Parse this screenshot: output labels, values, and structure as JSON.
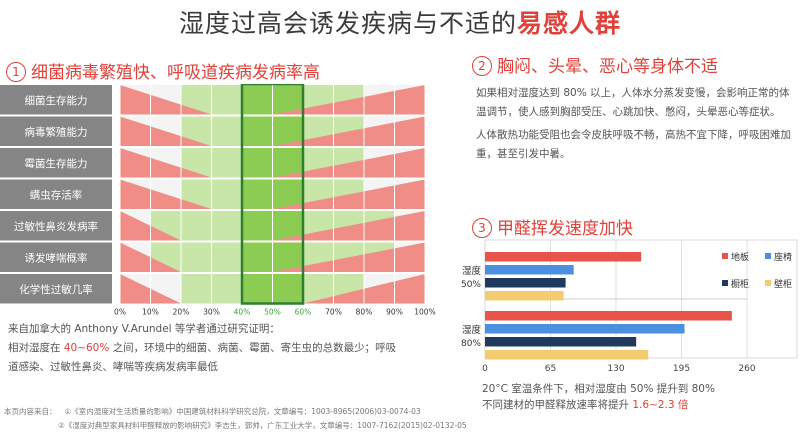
{
  "page": {
    "title_plain": "湿度过高会诱发疾病与不适的",
    "title_highlight": "易感人群"
  },
  "section1": {
    "number": "1",
    "title": "细菌病毒繁殖快、呼吸道疾病发病率高",
    "rows": [
      "细菌生存能力",
      "病毒繁殖能力",
      "霉菌生存能力",
      "螨虫存活率",
      "过敏性鼻炎发病率",
      "诱发哮喘概率",
      "化学性过敏几率"
    ],
    "percent_ticks": [
      "0%",
      "10%",
      "20%",
      "30%",
      "40%",
      "50%",
      "60%",
      "70%",
      "80%",
      "90%",
      "100%"
    ],
    "tick_colors": [
      "#333333",
      "#333333",
      "#333333",
      "#333333",
      "#3aa53a",
      "#3aa53a",
      "#3aa53a",
      "#333333",
      "#333333",
      "#333333",
      "#333333"
    ],
    "optimal_range": "40~60%",
    "colors": {
      "red": "#ef8d86",
      "light_green": "#c8e6a8",
      "green": "#8ccc52",
      "frame": "#2f7f2f",
      "label_bg": "#858585"
    },
    "text_1": "来自加拿大的 Anthony V.Arundel 等学者通过研究证明：",
    "text_2a": "相对湿度在 ",
    "text_2b": " 之间，环境中的细菌、病菌、霉菌、寄生虫的总数最少；呼吸",
    "text_3": "道感染、过敏性鼻炎、哮喘等疾病发病率最低"
  },
  "section2": {
    "number": "2",
    "title": "胸闷、头晕、恶心等身体不适",
    "para1": "如果相对湿度达到 80% 以上，人体水分蒸发变慢，会影响正常的体温调节，使人感到胸部受压、心跳加快、憋闷，头晕恶心等症状。",
    "para2": "人体散热功能受阻也会令皮肤呼吸不畅，高热不宜下降，呼吸困难加重，甚至引发中暑。"
  },
  "section3": {
    "number": "3",
    "title": "甲醛挥发速度加快",
    "note_1": "20°C 室温条件下，相对湿度由 50% 提升到 80%",
    "note_2a": "不同建材的甲醛释放速率将提升 ",
    "note_2b": "1.6~2.3 倍"
  },
  "chart_data": {
    "type": "bar",
    "orientation": "horizontal",
    "categories": [
      "湿度 50%",
      "湿度 80%"
    ],
    "series": [
      {
        "name": "地板",
        "color": "#e8534a",
        "values": [
          155,
          245
        ]
      },
      {
        "name": "座椅",
        "color": "#4a8fe0",
        "values": [
          88,
          198
        ]
      },
      {
        "name": "橱柜",
        "color": "#1f3a5c",
        "values": [
          80,
          150
        ]
      },
      {
        "name": "壁柜",
        "color": "#f2cc6e",
        "values": [
          78,
          162
        ]
      }
    ],
    "xlim": [
      0,
      260
    ],
    "xticks": [
      "0",
      "65",
      "130",
      "195",
      "260"
    ],
    "grid": true,
    "legend_position": "right"
  },
  "footnote": {
    "prefix": "本页内容来自：",
    "ref1": "①《室内湿度对生活质量的影响》中国建筑材料科学研究总院，文章编号：1003-8965(2006)03-0074-03",
    "ref2": "②《湿度对典型家具材料甲醛释放的影响研究》李志生，郭帅，广东工业大学，文章编号：1007-7162(2015)02-0132-05"
  }
}
